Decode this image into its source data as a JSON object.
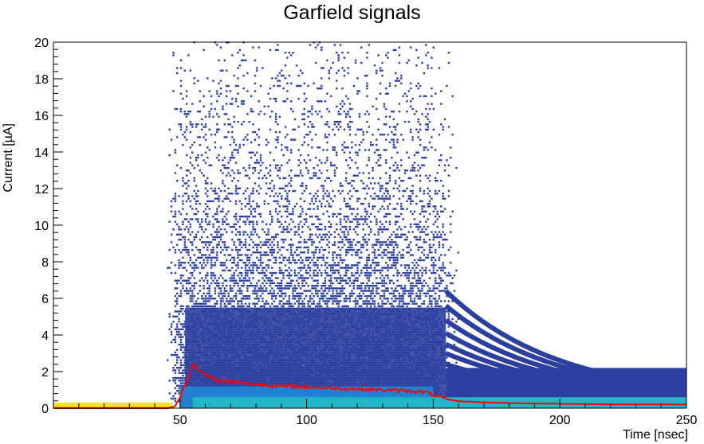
{
  "chart_data": {
    "type": "heatmap",
    "title": "Garfield signals",
    "xlabel": "Time [nsec]",
    "ylabel": "Current [µA]",
    "xlim": [
      0,
      250
    ],
    "ylim": [
      0,
      20
    ],
    "x_ticks": [
      {
        "value": 50,
        "label": "50"
      },
      {
        "value": 100,
        "label": "100"
      },
      {
        "value": 150,
        "label": "150"
      },
      {
        "value": 200,
        "label": "200"
      },
      {
        "value": 250,
        "label": "250"
      }
    ],
    "y_ticks": [
      {
        "value": 0,
        "label": "0"
      },
      {
        "value": 2,
        "label": "2"
      },
      {
        "value": 4,
        "label": "4"
      },
      {
        "value": 6,
        "label": "6"
      },
      {
        "value": 8,
        "label": "8"
      },
      {
        "value": 10,
        "label": "10"
      },
      {
        "value": 12,
        "label": "12"
      },
      {
        "value": 14,
        "label": "14"
      },
      {
        "value": 16,
        "label": "16"
      },
      {
        "value": 18,
        "label": "18"
      },
      {
        "value": 20,
        "label": "20"
      }
    ],
    "grid": false,
    "colors": {
      "scatter_main": "#2b3f9e",
      "heat_mid": "#1f7fd1",
      "heat_low": "#23b6c9",
      "baseline": "#f5e21a",
      "baseline_edge": "#e85a1a",
      "mean_line": "#ff0000"
    },
    "mean_signal": {
      "x": [
        0,
        45,
        48,
        50,
        52,
        54,
        55,
        56,
        58,
        60,
        65,
        70,
        80,
        90,
        100,
        110,
        120,
        130,
        140,
        145,
        148,
        150,
        155,
        160,
        170,
        180,
        200,
        220,
        250
      ],
      "y": [
        0,
        0,
        0.1,
        0.6,
        1.3,
        2.0,
        2.5,
        2.3,
        2.0,
        1.8,
        1.5,
        1.45,
        1.3,
        1.2,
        1.15,
        1.1,
        1.05,
        1.0,
        0.95,
        0.9,
        0.85,
        0.7,
        0.5,
        0.38,
        0.32,
        0.28,
        0.24,
        0.21,
        0.2
      ]
    }
  }
}
